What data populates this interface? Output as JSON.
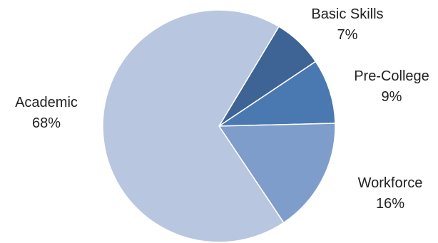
{
  "chart_data": {
    "type": "pie",
    "title": "",
    "start_angle_deg": 31,
    "direction": "clockwise",
    "slices": [
      {
        "label": "Basic Skills",
        "value": 7,
        "display": "7%",
        "color": "#3e6496"
      },
      {
        "label": "Pre-College",
        "value": 9,
        "display": "9%",
        "color": "#4a79b2"
      },
      {
        "label": "Workforce",
        "value": 16,
        "display": "16%",
        "color": "#7f9dca"
      },
      {
        "label": "Academic",
        "value": 68,
        "display": "68%",
        "color": "#b8c6e0"
      }
    ],
    "legend": "none"
  }
}
